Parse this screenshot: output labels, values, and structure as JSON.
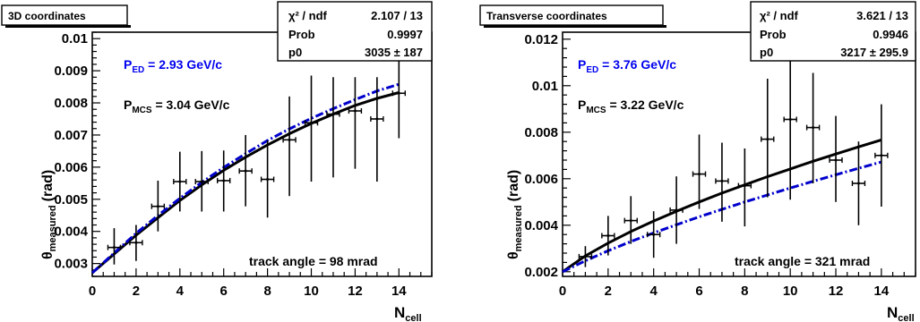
{
  "chart_data": [
    {
      "type": "scatter",
      "title": "3D coordinates",
      "xlabel_main": "N",
      "xlabel_sub": "cell",
      "ylabel_main": "θ",
      "ylabel_sub": "measured",
      "ylabel_unit": "(rad)",
      "xlim": [
        0,
        15.5
      ],
      "ylim": [
        0.0026,
        0.0102
      ],
      "xticks": [
        0,
        2,
        4,
        6,
        8,
        10,
        12,
        14
      ],
      "xtick_labels": [
        "0",
        "2",
        "4",
        "6",
        "8",
        "10",
        "12",
        "14"
      ],
      "yticks": [
        0.003,
        0.004,
        0.005,
        0.006,
        0.007,
        0.008,
        0.009,
        0.01
      ],
      "ytick_labels": [
        "0.003",
        "0.004",
        "0.005",
        "0.006",
        "0.007",
        "0.008",
        "0.009",
        "0.01"
      ],
      "stats": [
        {
          "key": "χ² / ndf",
          "val": "2.107 / 13"
        },
        {
          "key": "Prob",
          "val": "0.9997"
        },
        {
          "key": "p0",
          "val": "3035 ±  187"
        }
      ],
      "ped_label": "P",
      "ped_sub": "ED",
      "ped_value": " = 2.93 GeV/c",
      "pmcs_label": "P",
      "pmcs_sub": "MCS",
      "pmcs_value": " = 3.04  GeV/c",
      "annotation": "track angle = 98 mrad",
      "points": [
        {
          "x": 1,
          "y": 0.0035,
          "ylo": 0.00297,
          "yhi": 0.0041
        },
        {
          "x": 2,
          "y": 0.00365,
          "ylo": 0.00308,
          "yhi": 0.0042
        },
        {
          "x": 3,
          "y": 0.00478,
          "ylo": 0.004,
          "yhi": 0.00558
        },
        {
          "x": 4,
          "y": 0.00555,
          "ylo": 0.00462,
          "yhi": 0.00648
        },
        {
          "x": 5,
          "y": 0.00555,
          "ylo": 0.00462,
          "yhi": 0.0065
        },
        {
          "x": 6,
          "y": 0.00558,
          "ylo": 0.00462,
          "yhi": 0.00652
        },
        {
          "x": 7,
          "y": 0.00588,
          "ylo": 0.00478,
          "yhi": 0.007
        },
        {
          "x": 8,
          "y": 0.00562,
          "ylo": 0.00443,
          "yhi": 0.00683
        },
        {
          "x": 9,
          "y": 0.00685,
          "ylo": 0.0051,
          "yhi": 0.0082
        },
        {
          "x": 10,
          "y": 0.00738,
          "ylo": 0.00555,
          "yhi": 0.00885
        },
        {
          "x": 11,
          "y": 0.00765,
          "ylo": 0.00568,
          "yhi": 0.0088
        },
        {
          "x": 12,
          "y": 0.00775,
          "ylo": 0.00595,
          "yhi": 0.0088
        },
        {
          "x": 13,
          "y": 0.0075,
          "ylo": 0.00555,
          "yhi": 0.0088
        },
        {
          "x": 14,
          "y": 0.0083,
          "ylo": 0.0069,
          "yhi": 0.00965
        }
      ],
      "fit_mcs": {
        "color": "#000000",
        "x": [
          0,
          1,
          2,
          3,
          4,
          5,
          6,
          7,
          8,
          9,
          10,
          11,
          12,
          13,
          14
        ],
        "y": [
          0.00271,
          0.0033,
          0.00388,
          0.00443,
          0.00496,
          0.00545,
          0.0059,
          0.00631,
          0.00669,
          0.00704,
          0.00736,
          0.00765,
          0.00792,
          0.00814,
          0.00832
        ]
      },
      "fit_ed": {
        "color": "#0000cc",
        "x": [
          0,
          1,
          2,
          3,
          4,
          5,
          6,
          7,
          8,
          9,
          10,
          11,
          12,
          13,
          14
        ],
        "y": [
          0.00271,
          0.00333,
          0.00394,
          0.0045,
          0.00503,
          0.00553,
          0.00599,
          0.00642,
          0.00683,
          0.00719,
          0.00752,
          0.00782,
          0.0081,
          0.00837,
          0.00858
        ]
      }
    },
    {
      "type": "scatter",
      "title": "Transverse coordinates",
      "xlabel_main": "N",
      "xlabel_sub": "cell",
      "ylabel_main": "θ",
      "ylabel_sub": "measured",
      "ylabel_unit": "(rad)",
      "xlim": [
        0,
        15.5
      ],
      "ylim": [
        0.0018,
        0.0123
      ],
      "xticks": [
        0,
        2,
        4,
        6,
        8,
        10,
        12,
        14
      ],
      "xtick_labels": [
        "0",
        "2",
        "4",
        "6",
        "8",
        "10",
        "12",
        "14"
      ],
      "yticks": [
        0.002,
        0.004,
        0.006,
        0.008,
        0.01,
        0.012
      ],
      "ytick_labels": [
        "0.002",
        "0.004",
        "0.006",
        "0.008",
        "0.01",
        "0.012"
      ],
      "stats": [
        {
          "key": "χ² / ndf",
          "val": "3.621 / 13"
        },
        {
          "key": "Prob",
          "val": "0.9946"
        },
        {
          "key": "p0",
          "val": "3217 ± 295.9"
        }
      ],
      "ped_label": "P",
      "ped_sub": "ED",
      "ped_value": " = 3.76 GeV/c",
      "pmcs_label": "P",
      "pmcs_sub": "MCS",
      "pmcs_value": " = 3.22  GeV/c",
      "annotation": "track angle = 321 mrad",
      "points": [
        {
          "x": 1,
          "y": 0.00265,
          "ylo": 0.0022,
          "yhi": 0.0031
        },
        {
          "x": 2,
          "y": 0.00355,
          "ylo": 0.0027,
          "yhi": 0.0044
        },
        {
          "x": 3,
          "y": 0.0042,
          "ylo": 0.0032,
          "yhi": 0.00525
        },
        {
          "x": 4,
          "y": 0.0036,
          "ylo": 0.0026,
          "yhi": 0.0046
        },
        {
          "x": 5,
          "y": 0.00465,
          "ylo": 0.0032,
          "yhi": 0.0061
        },
        {
          "x": 6,
          "y": 0.0062,
          "ylo": 0.0047,
          "yhi": 0.0079
        },
        {
          "x": 7,
          "y": 0.0059,
          "ylo": 0.00415,
          "yhi": 0.00755
        },
        {
          "x": 8,
          "y": 0.0057,
          "ylo": 0.00395,
          "yhi": 0.0073
        },
        {
          "x": 9,
          "y": 0.0077,
          "ylo": 0.0052,
          "yhi": 0.0103
        },
        {
          "x": 10,
          "y": 0.00855,
          "ylo": 0.0051,
          "yhi": 0.0119
        },
        {
          "x": 11,
          "y": 0.0082,
          "ylo": 0.0058,
          "yhi": 0.01055
        },
        {
          "x": 12,
          "y": 0.0068,
          "ylo": 0.005,
          "yhi": 0.0087
        },
        {
          "x": 13,
          "y": 0.0058,
          "ylo": 0.004,
          "yhi": 0.0076
        },
        {
          "x": 14,
          "y": 0.007,
          "ylo": 0.0048,
          "yhi": 0.0092
        }
      ],
      "fit_mcs": {
        "color": "#000000",
        "x": [
          0,
          1,
          2,
          3,
          4,
          5,
          6,
          7,
          8,
          9,
          10,
          11,
          12,
          13,
          14
        ],
        "y": [
          0.002,
          0.00268,
          0.00323,
          0.00373,
          0.00418,
          0.0046,
          0.005,
          0.00538,
          0.00574,
          0.00609,
          0.00642,
          0.00675,
          0.00706,
          0.00737,
          0.00767
        ]
      },
      "fit_ed": {
        "color": "#0000cc",
        "x": [
          0,
          1,
          2,
          3,
          4,
          5,
          6,
          7,
          8,
          9,
          10,
          11,
          12,
          13,
          14
        ],
        "y": [
          0.002,
          0.00247,
          0.0029,
          0.0033,
          0.00367,
          0.00402,
          0.00436,
          0.00468,
          0.005,
          0.0053,
          0.0056,
          0.00589,
          0.00617,
          0.00645,
          0.00672
        ]
      }
    }
  ]
}
